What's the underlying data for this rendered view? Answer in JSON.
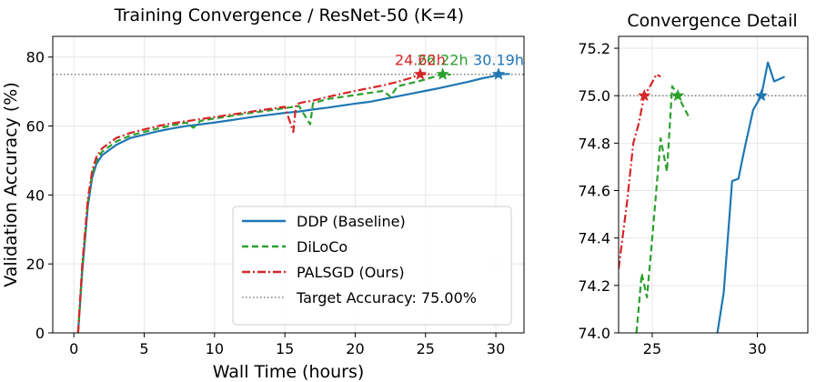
{
  "chart_data": [
    {
      "type": "line",
      "title": "Training Convergence / ResNet-50 (K=4)",
      "xlabel": "Wall Time (hours)",
      "ylabel": "Validation Accuracy (%)",
      "xlim": [
        -1.5,
        32
      ],
      "ylim": [
        0,
        86
      ],
      "xticks": [
        0,
        5,
        10,
        15,
        20,
        25,
        30
      ],
      "yticks": [
        0,
        20,
        40,
        60,
        80
      ],
      "xtick_labels": [
        "0",
        "5",
        "10",
        "15",
        "20",
        "25",
        "30"
      ],
      "ytick_labels": [
        "0",
        "20",
        "40",
        "60",
        "80"
      ],
      "grid": true,
      "legend_position": "lower-right",
      "target": {
        "value": 75.0,
        "label": "Target Accuracy: 75.00%"
      },
      "series": [
        {
          "name": "DDP (Baseline)",
          "color": "#1f77b4",
          "style": "solid",
          "x": [
            0.3,
            0.6,
            1.0,
            1.3,
            1.6,
            2.0,
            2.5,
            3,
            4,
            5,
            6,
            7,
            8,
            9,
            10,
            11,
            12,
            13,
            14,
            15,
            16,
            17,
            18,
            19,
            20,
            21,
            22,
            23,
            24,
            25,
            26,
            27,
            28,
            29,
            30,
            30.19,
            31
          ],
          "y": [
            0,
            18,
            37,
            45,
            49,
            51.5,
            53,
            54.5,
            56.5,
            57.5,
            58.5,
            59.3,
            60,
            60.5,
            61,
            61.6,
            62.2,
            62.8,
            63.3,
            63.8,
            64.2,
            64.8,
            65.3,
            65.9,
            66.5,
            67,
            67.8,
            68.6,
            69.4,
            70.2,
            71,
            71.9,
            72.8,
            73.8,
            74.6,
            75.0,
            75.1
          ],
          "marker": {
            "x": 30.19,
            "y": 75.0,
            "label": "30.19h"
          }
        },
        {
          "name": "DiLoCo",
          "color": "#2ca02c",
          "style": "dashed",
          "x": [
            0.3,
            0.6,
            1.0,
            1.3,
            1.6,
            2.0,
            2.5,
            3,
            4,
            5,
            6,
            7,
            8,
            8.5,
            9,
            10,
            11,
            12,
            13,
            14,
            15,
            16,
            16.8,
            17.0,
            17.5,
            18,
            19,
            20,
            21,
            22,
            22.5,
            23,
            24,
            25,
            26,
            26.22,
            26.8
          ],
          "y": [
            0,
            19,
            38,
            46,
            50,
            52.5,
            54,
            55.5,
            57.2,
            58.3,
            59.3,
            60.2,
            61,
            59.5,
            61.5,
            62.2,
            62.8,
            63.5,
            64,
            64.6,
            65.2,
            65.8,
            60.5,
            66.6,
            67.2,
            67.8,
            68.4,
            69,
            69.6,
            70.2,
            68.5,
            71.5,
            72.5,
            73.5,
            74.8,
            75.0,
            74.9
          ],
          "marker": {
            "x": 26.22,
            "y": 75.0,
            "label": "26.22h"
          }
        },
        {
          "name": "PALSGD (Ours)",
          "color": "#d62728",
          "style": "dashdot",
          "x": [
            0.3,
            0.6,
            1.0,
            1.3,
            1.6,
            2.0,
            2.5,
            3,
            4,
            5,
            6,
            7,
            8,
            9,
            10,
            11,
            12,
            13,
            14,
            15,
            15.6,
            15.8,
            16.2,
            17,
            18,
            19,
            20,
            21,
            22,
            23,
            24,
            24.62,
            25.3
          ],
          "y": [
            0,
            20,
            39,
            47,
            51,
            53.5,
            55,
            56.5,
            58,
            59,
            60,
            60.8,
            61.4,
            62,
            62.6,
            63.2,
            63.8,
            64.4,
            65,
            65.6,
            58.3,
            66.3,
            66.8,
            67.4,
            68.4,
            69.3,
            70.2,
            71,
            71.8,
            72.8,
            74,
            75.0,
            75.1
          ],
          "marker": {
            "x": 24.62,
            "y": 75.0,
            "label": "24.62h"
          }
        }
      ]
    },
    {
      "type": "line",
      "title": "Convergence Detail",
      "xlim": [
        23.4,
        32.4
      ],
      "ylim": [
        74.0,
        75.25
      ],
      "xticks": [
        25,
        30
      ],
      "yticks": [
        74.0,
        74.2,
        74.4,
        74.6,
        74.8,
        75.0,
        75.2
      ],
      "xtick_labels": [
        "25",
        "30"
      ],
      "ytick_labels": [
        "74.0",
        "74.2",
        "74.4",
        "74.6",
        "74.8",
        "75.0",
        "75.2"
      ],
      "grid": true,
      "target": {
        "value": 75.0
      },
      "series": [
        {
          "name": "DDP (Baseline)",
          "color": "#1f77b4",
          "style": "solid",
          "x": [
            28.1,
            28.4,
            28.8,
            29.1,
            29.4,
            29.8,
            30.19,
            30.5,
            30.8,
            31.3
          ],
          "y": [
            74.0,
            74.17,
            74.64,
            74.65,
            74.78,
            74.94,
            75.0,
            75.14,
            75.06,
            75.08
          ],
          "marker": {
            "x": 30.19,
            "y": 75.0
          }
        },
        {
          "name": "DiLoCo",
          "color": "#2ca02c",
          "style": "dashed",
          "x": [
            24.25,
            24.5,
            24.75,
            25.05,
            25.4,
            25.7,
            25.95,
            26.22,
            26.8
          ],
          "y": [
            74.0,
            74.25,
            74.15,
            74.45,
            74.82,
            74.68,
            75.04,
            75.0,
            74.9
          ],
          "marker": {
            "x": 26.22,
            "y": 75.0
          }
        },
        {
          "name": "PALSGD (Ours)",
          "color": "#d62728",
          "style": "dashdot",
          "x": [
            23.4,
            23.8,
            24.1,
            24.35,
            24.62,
            24.9,
            25.2,
            25.4
          ],
          "y": [
            74.27,
            74.55,
            74.8,
            74.88,
            75.0,
            75.04,
            75.09,
            75.08
          ],
          "marker": {
            "x": 24.62,
            "y": 75.0
          }
        }
      ]
    }
  ]
}
